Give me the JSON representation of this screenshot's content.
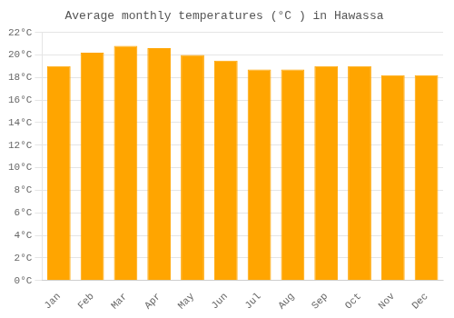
{
  "chart_data": {
    "type": "bar",
    "title": "Average monthly temperatures (°C ) in Hawassa",
    "categories": [
      "Jan",
      "Feb",
      "Mar",
      "Apr",
      "May",
      "Jun",
      "Jul",
      "Aug",
      "Sep",
      "Oct",
      "Nov",
      "Dec"
    ],
    "values": [
      19.0,
      20.2,
      20.8,
      20.6,
      20.0,
      19.5,
      18.7,
      18.7,
      19.0,
      19.0,
      18.2,
      18.2
    ],
    "color": "#FFA500",
    "ylim": [
      0,
      22
    ],
    "yticks": [
      {
        "value": 0,
        "label": "0°C"
      },
      {
        "value": 2,
        "label": "2°C"
      },
      {
        "value": 4,
        "label": "4°C"
      },
      {
        "value": 6,
        "label": "6°C"
      },
      {
        "value": 8,
        "label": "8°C"
      },
      {
        "value": 10,
        "label": "10°C"
      },
      {
        "value": 12,
        "label": "12°C"
      },
      {
        "value": 14,
        "label": "14°C"
      },
      {
        "value": 16,
        "label": "16°C"
      },
      {
        "value": 18,
        "label": "18°C"
      },
      {
        "value": 20,
        "label": "20°C"
      },
      {
        "value": 22,
        "label": "22°C"
      }
    ],
    "grid": true
  }
}
